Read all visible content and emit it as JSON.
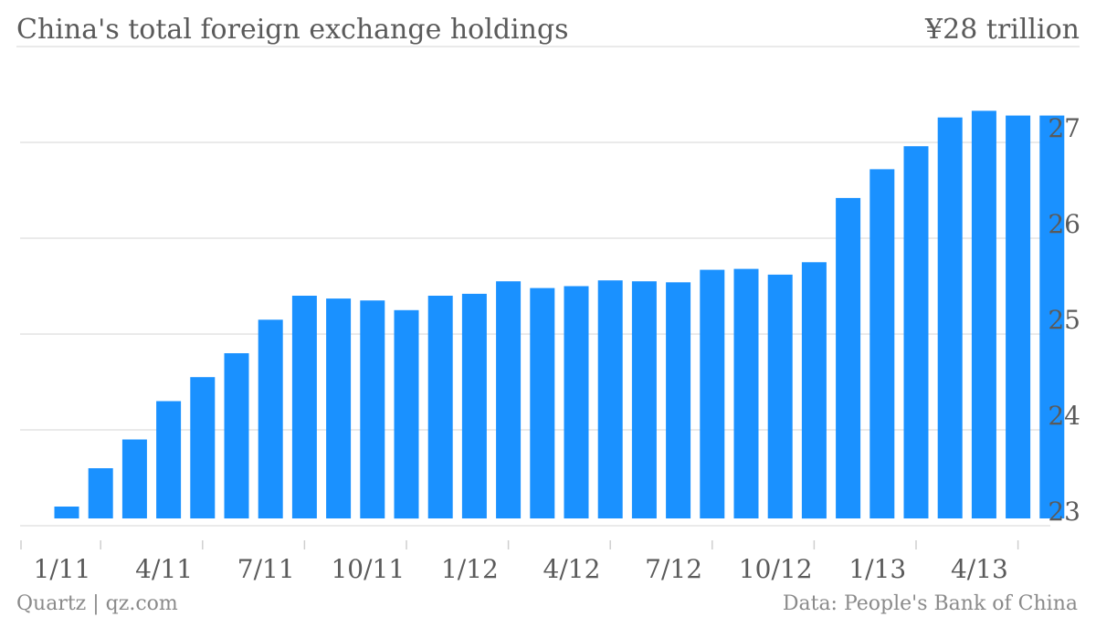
{
  "chart_data": {
    "type": "bar",
    "title": "China's total foreign exchange holdings",
    "unit_label": "¥28 trillion",
    "source": "Data: People's Bank of China",
    "credit": "Quartz | qz.com",
    "ylim": [
      23,
      28
    ],
    "yticks": [
      23,
      24,
      25,
      26,
      27
    ],
    "y_axis_position": "right",
    "grid": true,
    "colors": {
      "bar": "#1a91ff",
      "text": "#5a5a5a",
      "grid": "#e3e3e3"
    },
    "categories": [
      "1/11",
      "2/11",
      "3/11",
      "4/11",
      "5/11",
      "6/11",
      "7/11",
      "8/11",
      "9/11",
      "10/11",
      "11/11",
      "12/11",
      "1/12",
      "2/12",
      "3/12",
      "4/12",
      "5/12",
      "6/12",
      "7/12",
      "8/12",
      "9/12",
      "10/12",
      "11/12",
      "12/12",
      "1/13",
      "2/13",
      "3/13",
      "4/13",
      "5/13",
      "6/13"
    ],
    "xtick_labels": [
      "1/11",
      "4/11",
      "7/11",
      "10/11",
      "1/12",
      "4/12",
      "7/12",
      "10/12",
      "1/13",
      "4/13"
    ],
    "values": [
      23.2,
      23.6,
      23.9,
      24.3,
      24.55,
      24.8,
      25.15,
      25.4,
      25.37,
      25.35,
      25.25,
      25.4,
      25.42,
      25.55,
      25.48,
      25.5,
      25.56,
      25.55,
      25.54,
      25.67,
      25.68,
      25.62,
      25.75,
      26.42,
      26.72,
      26.96,
      27.26,
      27.33,
      27.28,
      27.28
    ]
  }
}
